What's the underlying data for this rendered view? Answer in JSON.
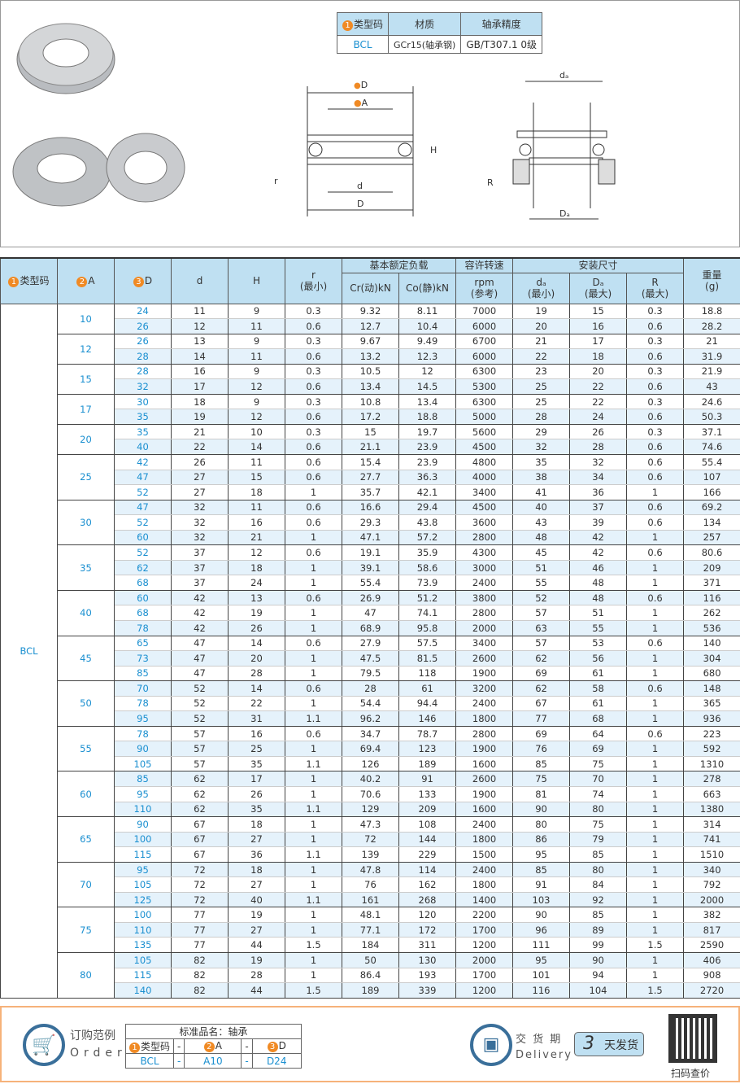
{
  "spec": {
    "headers": [
      "类型码",
      "材质",
      "轴承精度"
    ],
    "header_num": "1",
    "values": [
      "BCL",
      "GCr15(轴承钢)",
      "GB/T307.1 0级"
    ]
  },
  "drawing": {
    "labels": {
      "D3": "D",
      "A2": "A",
      "H": "H",
      "r": "r",
      "d": "d",
      "D": "D",
      "da": "dₐ",
      "R": "R",
      "Da": "Dₐ"
    },
    "nums": [
      "3",
      "2"
    ]
  },
  "table": {
    "headers": {
      "type": "类型码",
      "A": "A",
      "D": "D",
      "d": "d",
      "H": "H",
      "r": "r",
      "r_sub": "(最小)",
      "load": "基本额定负载",
      "cr": "Cr(动)kN",
      "co": "Co(静)kN",
      "speed": "容许转速",
      "rpm": "rpm",
      "ref": "(参考)",
      "install": "安装尺寸",
      "da": "dₐ",
      "da_sub": "(最小)",
      "Da": "Dₐ",
      "Da_sub": "(最大)",
      "R": "R",
      "R_sub": "(最大)",
      "weight": "重量",
      "g": "(g)"
    },
    "type_value": "BCL",
    "groups": [
      {
        "A": "10",
        "rows": [
          [
            "24",
            "11",
            "9",
            "0.3",
            "9.32",
            "8.11",
            "7000",
            "19",
            "15",
            "0.3",
            "18.8"
          ],
          [
            "26",
            "12",
            "11",
            "0.6",
            "12.7",
            "10.4",
            "6000",
            "20",
            "16",
            "0.6",
            "28.2"
          ]
        ]
      },
      {
        "A": "12",
        "rows": [
          [
            "26",
            "13",
            "9",
            "0.3",
            "9.67",
            "9.49",
            "6700",
            "21",
            "17",
            "0.3",
            "21"
          ],
          [
            "28",
            "14",
            "11",
            "0.6",
            "13.2",
            "12.3",
            "6000",
            "22",
            "18",
            "0.6",
            "31.9"
          ]
        ]
      },
      {
        "A": "15",
        "rows": [
          [
            "28",
            "16",
            "9",
            "0.3",
            "10.5",
            "12",
            "6300",
            "23",
            "20",
            "0.3",
            "21.9"
          ],
          [
            "32",
            "17",
            "12",
            "0.6",
            "13.4",
            "14.5",
            "5300",
            "25",
            "22",
            "0.6",
            "43"
          ]
        ]
      },
      {
        "A": "17",
        "rows": [
          [
            "30",
            "18",
            "9",
            "0.3",
            "10.8",
            "13.4",
            "6300",
            "25",
            "22",
            "0.3",
            "24.6"
          ],
          [
            "35",
            "19",
            "12",
            "0.6",
            "17.2",
            "18.8",
            "5000",
            "28",
            "24",
            "0.6",
            "50.3"
          ]
        ]
      },
      {
        "A": "20",
        "rows": [
          [
            "35",
            "21",
            "10",
            "0.3",
            "15",
            "19.7",
            "5600",
            "29",
            "26",
            "0.3",
            "37.1"
          ],
          [
            "40",
            "22",
            "14",
            "0.6",
            "21.1",
            "23.9",
            "4500",
            "32",
            "28",
            "0.6",
            "74.6"
          ]
        ]
      },
      {
        "A": "25",
        "rows": [
          [
            "42",
            "26",
            "11",
            "0.6",
            "15.4",
            "23.9",
            "4800",
            "35",
            "32",
            "0.6",
            "55.4"
          ],
          [
            "47",
            "27",
            "15",
            "0.6",
            "27.7",
            "36.3",
            "4000",
            "38",
            "34",
            "0.6",
            "107"
          ],
          [
            "52",
            "27",
            "18",
            "1",
            "35.7",
            "42.1",
            "3400",
            "41",
            "36",
            "1",
            "166"
          ]
        ]
      },
      {
        "A": "30",
        "rows": [
          [
            "47",
            "32",
            "11",
            "0.6",
            "16.6",
            "29.4",
            "4500",
            "40",
            "37",
            "0.6",
            "69.2"
          ],
          [
            "52",
            "32",
            "16",
            "0.6",
            "29.3",
            "43.8",
            "3600",
            "43",
            "39",
            "0.6",
            "134"
          ],
          [
            "60",
            "32",
            "21",
            "1",
            "47.1",
            "57.2",
            "2800",
            "48",
            "42",
            "1",
            "257"
          ]
        ]
      },
      {
        "A": "35",
        "rows": [
          [
            "52",
            "37",
            "12",
            "0.6",
            "19.1",
            "35.9",
            "4300",
            "45",
            "42",
            "0.6",
            "80.6"
          ],
          [
            "62",
            "37",
            "18",
            "1",
            "39.1",
            "58.6",
            "3000",
            "51",
            "46",
            "1",
            "209"
          ],
          [
            "68",
            "37",
            "24",
            "1",
            "55.4",
            "73.9",
            "2400",
            "55",
            "48",
            "1",
            "371"
          ]
        ]
      },
      {
        "A": "40",
        "rows": [
          [
            "60",
            "42",
            "13",
            "0.6",
            "26.9",
            "51.2",
            "3800",
            "52",
            "48",
            "0.6",
            "116"
          ],
          [
            "68",
            "42",
            "19",
            "1",
            "47",
            "74.1",
            "2800",
            "57",
            "51",
            "1",
            "262"
          ],
          [
            "78",
            "42",
            "26",
            "1",
            "68.9",
            "95.8",
            "2000",
            "63",
            "55",
            "1",
            "536"
          ]
        ]
      },
      {
        "A": "45",
        "rows": [
          [
            "65",
            "47",
            "14",
            "0.6",
            "27.9",
            "57.5",
            "3400",
            "57",
            "53",
            "0.6",
            "140"
          ],
          [
            "73",
            "47",
            "20",
            "1",
            "47.5",
            "81.5",
            "2600",
            "62",
            "56",
            "1",
            "304"
          ],
          [
            "85",
            "47",
            "28",
            "1",
            "79.5",
            "118",
            "1900",
            "69",
            "61",
            "1",
            "680"
          ]
        ]
      },
      {
        "A": "50",
        "rows": [
          [
            "70",
            "52",
            "14",
            "0.6",
            "28",
            "61",
            "3200",
            "62",
            "58",
            "0.6",
            "148"
          ],
          [
            "78",
            "52",
            "22",
            "1",
            "54.4",
            "94.4",
            "2400",
            "67",
            "61",
            "1",
            "365"
          ],
          [
            "95",
            "52",
            "31",
            "1.1",
            "96.2",
            "146",
            "1800",
            "77",
            "68",
            "1",
            "936"
          ]
        ]
      },
      {
        "A": "55",
        "rows": [
          [
            "78",
            "57",
            "16",
            "0.6",
            "34.7",
            "78.7",
            "2800",
            "69",
            "64",
            "0.6",
            "223"
          ],
          [
            "90",
            "57",
            "25",
            "1",
            "69.4",
            "123",
            "1900",
            "76",
            "69",
            "1",
            "592"
          ],
          [
            "105",
            "57",
            "35",
            "1.1",
            "126",
            "189",
            "1600",
            "85",
            "75",
            "1",
            "1310"
          ]
        ]
      },
      {
        "A": "60",
        "rows": [
          [
            "85",
            "62",
            "17",
            "1",
            "40.2",
            "91",
            "2600",
            "75",
            "70",
            "1",
            "278"
          ],
          [
            "95",
            "62",
            "26",
            "1",
            "70.6",
            "133",
            "1900",
            "81",
            "74",
            "1",
            "663"
          ],
          [
            "110",
            "62",
            "35",
            "1.1",
            "129",
            "209",
            "1600",
            "90",
            "80",
            "1",
            "1380"
          ]
        ]
      },
      {
        "A": "65",
        "rows": [
          [
            "90",
            "67",
            "18",
            "1",
            "47.3",
            "108",
            "2400",
            "80",
            "75",
            "1",
            "314"
          ],
          [
            "100",
            "67",
            "27",
            "1",
            "72",
            "144",
            "1800",
            "86",
            "79",
            "1",
            "741"
          ],
          [
            "115",
            "67",
            "36",
            "1.1",
            "139",
            "229",
            "1500",
            "95",
            "85",
            "1",
            "1510"
          ]
        ]
      },
      {
        "A": "70",
        "rows": [
          [
            "95",
            "72",
            "18",
            "1",
            "47.8",
            "114",
            "2400",
            "85",
            "80",
            "1",
            "340"
          ],
          [
            "105",
            "72",
            "27",
            "1",
            "76",
            "162",
            "1800",
            "91",
            "84",
            "1",
            "792"
          ],
          [
            "125",
            "72",
            "40",
            "1.1",
            "161",
            "268",
            "1400",
            "103",
            "92",
            "1",
            "2000"
          ]
        ]
      },
      {
        "A": "75",
        "rows": [
          [
            "100",
            "77",
            "19",
            "1",
            "48.1",
            "120",
            "2200",
            "90",
            "85",
            "1",
            "382"
          ],
          [
            "110",
            "77",
            "27",
            "1",
            "77.1",
            "172",
            "1700",
            "96",
            "89",
            "1",
            "817"
          ],
          [
            "135",
            "77",
            "44",
            "1.5",
            "184",
            "311",
            "1200",
            "111",
            "99",
            "1.5",
            "2590"
          ]
        ]
      },
      {
        "A": "80",
        "rows": [
          [
            "105",
            "82",
            "19",
            "1",
            "50",
            "130",
            "2000",
            "95",
            "90",
            "1",
            "406"
          ],
          [
            "115",
            "82",
            "28",
            "1",
            "86.4",
            "193",
            "1700",
            "101",
            "94",
            "1",
            "908"
          ],
          [
            "140",
            "82",
            "44",
            "1.5",
            "189",
            "339",
            "1200",
            "116",
            "104",
            "1.5",
            "2720"
          ]
        ]
      }
    ]
  },
  "footer": {
    "order_cn": "订购范例",
    "order_en": "Order",
    "std_name": "标准品名：轴承",
    "cols": [
      "类型码",
      "-",
      "A",
      "-",
      "D"
    ],
    "vals": [
      "BCL",
      "-",
      "A10",
      "-",
      "D24"
    ],
    "delivery_cn": "交 货 期",
    "delivery_en": "Delivery",
    "days": "3",
    "days_label": "天发货",
    "qr_label": "扫码查价"
  },
  "colors": {
    "accent": "#1a8fd0",
    "header_bg": "#bfe0f2",
    "badge": "#f08a24"
  }
}
